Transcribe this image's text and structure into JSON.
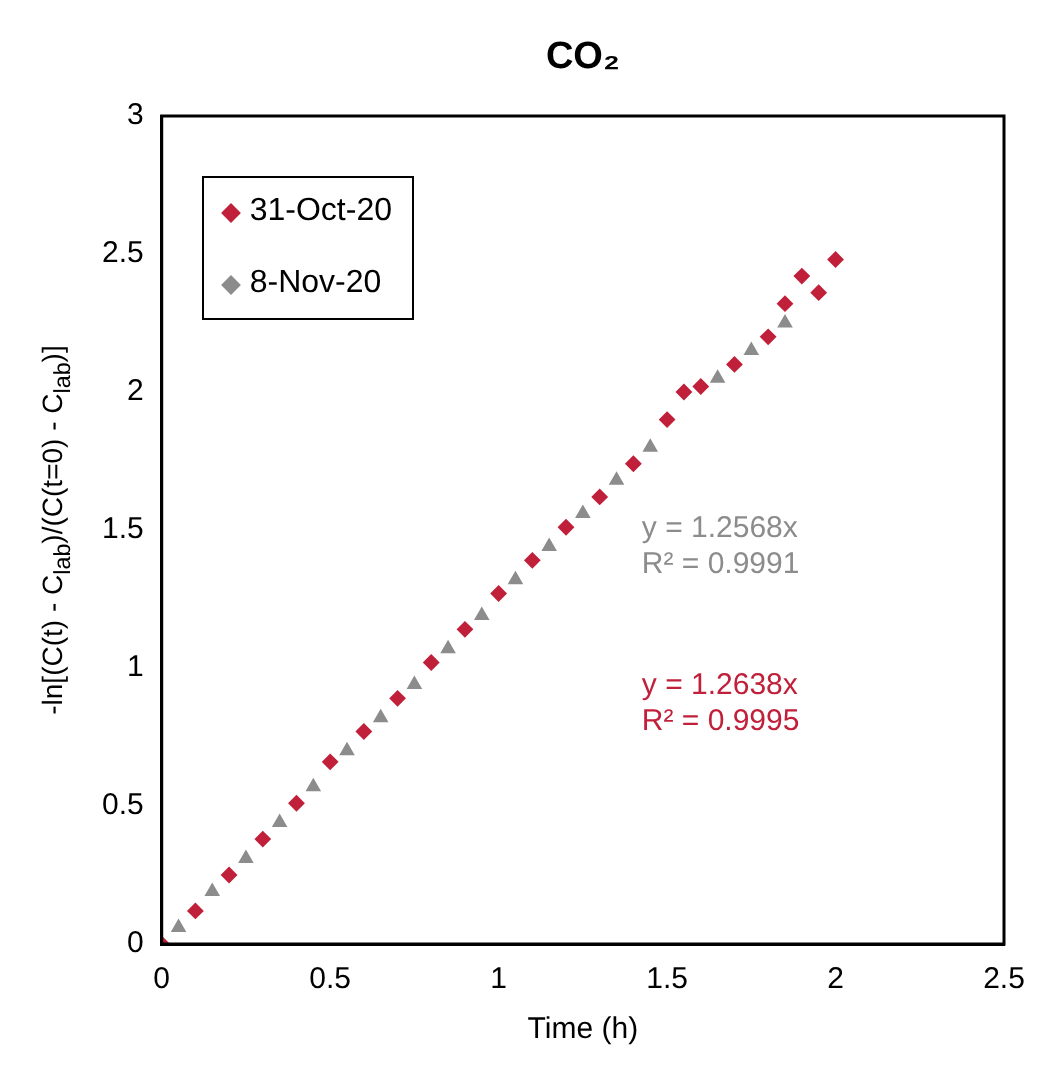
{
  "chart_data": {
    "type": "scatter",
    "title": "CO₂",
    "xlabel": "Time (h)",
    "ylabel": "-ln[(C(t) - C$_{lab}$)/(C(t=0) - C$_{lab}$)]",
    "xlim": [
      0,
      2.5
    ],
    "xticks": [
      0,
      0.5,
      1,
      1.5,
      2,
      2.5
    ],
    "ylim": [
      0,
      3
    ],
    "yticks": [
      0,
      0.5,
      1,
      1.5,
      2,
      2.5,
      3
    ],
    "grid": false,
    "legend": "top left",
    "series": [
      {
        "name": "31-Oct-20",
        "color": "#c0203a",
        "marker": "diamond",
        "x": [
          0,
          0.1,
          0.2,
          0.3,
          0.4,
          0.5,
          0.6,
          0.7,
          0.8,
          0.9,
          1.0,
          1.1,
          1.2,
          1.3,
          1.4,
          1.5,
          1.55,
          1.6,
          1.7,
          1.8,
          1.85,
          1.9,
          1.95,
          2.0
        ],
        "values": [
          0,
          0.12,
          0.25,
          0.38,
          0.51,
          0.66,
          0.77,
          0.89,
          1.02,
          1.14,
          1.27,
          1.39,
          1.51,
          1.62,
          1.74,
          1.9,
          2.0,
          2.02,
          2.1,
          2.2,
          2.32,
          2.42,
          2.36,
          2.48
        ]
      },
      {
        "name": "8-Nov-20",
        "color": "#8c8c8c",
        "marker": "triangle",
        "x": [
          0.05,
          0.15,
          0.25,
          0.35,
          0.45,
          0.55,
          0.65,
          0.75,
          0.85,
          0.95,
          1.05,
          1.15,
          1.25,
          1.35,
          1.45,
          1.65,
          1.75,
          1.85
        ],
        "values": [
          0.06,
          0.19,
          0.31,
          0.44,
          0.57,
          0.7,
          0.82,
          0.94,
          1.07,
          1.19,
          1.32,
          1.44,
          1.56,
          1.68,
          1.8,
          2.05,
          2.15,
          2.25
        ]
      }
    ],
    "annotations": [
      "y = 1.2568x\nR² = 0.9991",
      "y = 1.2638x\nR² = 0.9995"
    ]
  }
}
